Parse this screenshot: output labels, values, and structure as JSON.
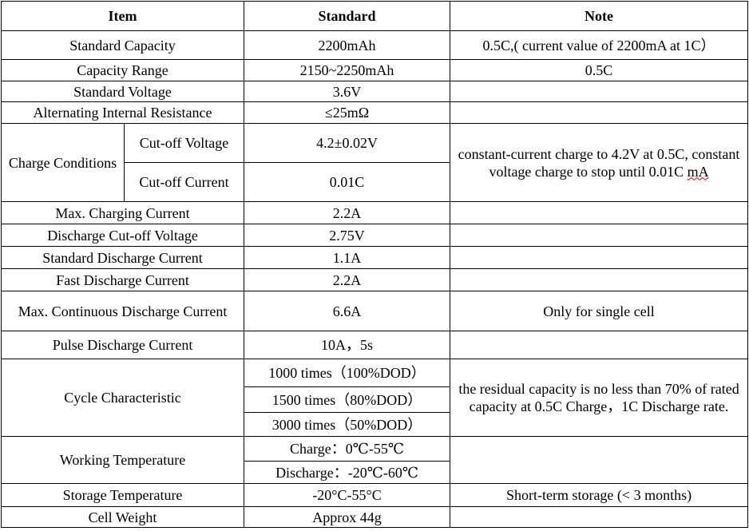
{
  "header": {
    "item": "Item",
    "standard": "Standard",
    "note": "Note"
  },
  "rows": {
    "standard_capacity": {
      "item": "Standard Capacity",
      "standard": "2200mAh",
      "note": "0.5C,( current value of 2200mA at 1C）"
    },
    "capacity_range": {
      "item": "Capacity Range",
      "standard": "2150~2250mAh",
      "note": "0.5C"
    },
    "standard_voltage": {
      "item": "Standard Voltage",
      "standard": "3.6V"
    },
    "internal_resistance": {
      "item": "Alternating Internal Resistance",
      "standard": "≤25mΩ"
    },
    "charge_conditions": {
      "item": "Charge Conditions",
      "cutoff_voltage_label": "Cut-off Voltage",
      "cutoff_voltage_value": "4.2±0.02V",
      "cutoff_current_label": "Cut-off Current",
      "cutoff_current_value": "0.01C",
      "note_main": "constant-current charge to 4.2V at 0.5C, constant voltage charge to stop until 0.01C ",
      "note_unit": "mA"
    },
    "max_charging_current": {
      "item": "Max. Charging Current",
      "standard": "2.2A"
    },
    "discharge_cutoff_voltage": {
      "item": "Discharge Cut-off Voltage",
      "standard": "2.75V"
    },
    "standard_discharge_current": {
      "item": "Standard Discharge Current",
      "standard": "1.1A"
    },
    "fast_discharge_current": {
      "item": "Fast Discharge Current",
      "standard": "2.2A"
    },
    "max_continuous_discharge": {
      "item": "Max. Continuous Discharge Current",
      "standard": "6.6A",
      "note": "Only for single cell"
    },
    "pulse_discharge_current": {
      "item": "Pulse Discharge Current",
      "standard": "10A，5s"
    },
    "cycle_characteristic": {
      "item": "Cycle Characteristic",
      "values": [
        "1000 times（100%DOD）",
        "1500 times（80%DOD）",
        "3000 times（50%DOD）"
      ],
      "note": "the residual capacity is no less than 70% of rated capacity at 0.5C Charge，1C Discharge rate."
    },
    "working_temperature": {
      "item": "Working Temperature",
      "charge": "Charge：0℃-55℃",
      "discharge": "Discharge：-20℃-60℃"
    },
    "storage_temperature": {
      "item": "Storage Temperature",
      "standard": "-20°C-55°C",
      "note": "Short-term storage (< 3 months)"
    },
    "cell_weight": {
      "item": "Cell Weight",
      "standard": "Approx 44g"
    }
  }
}
